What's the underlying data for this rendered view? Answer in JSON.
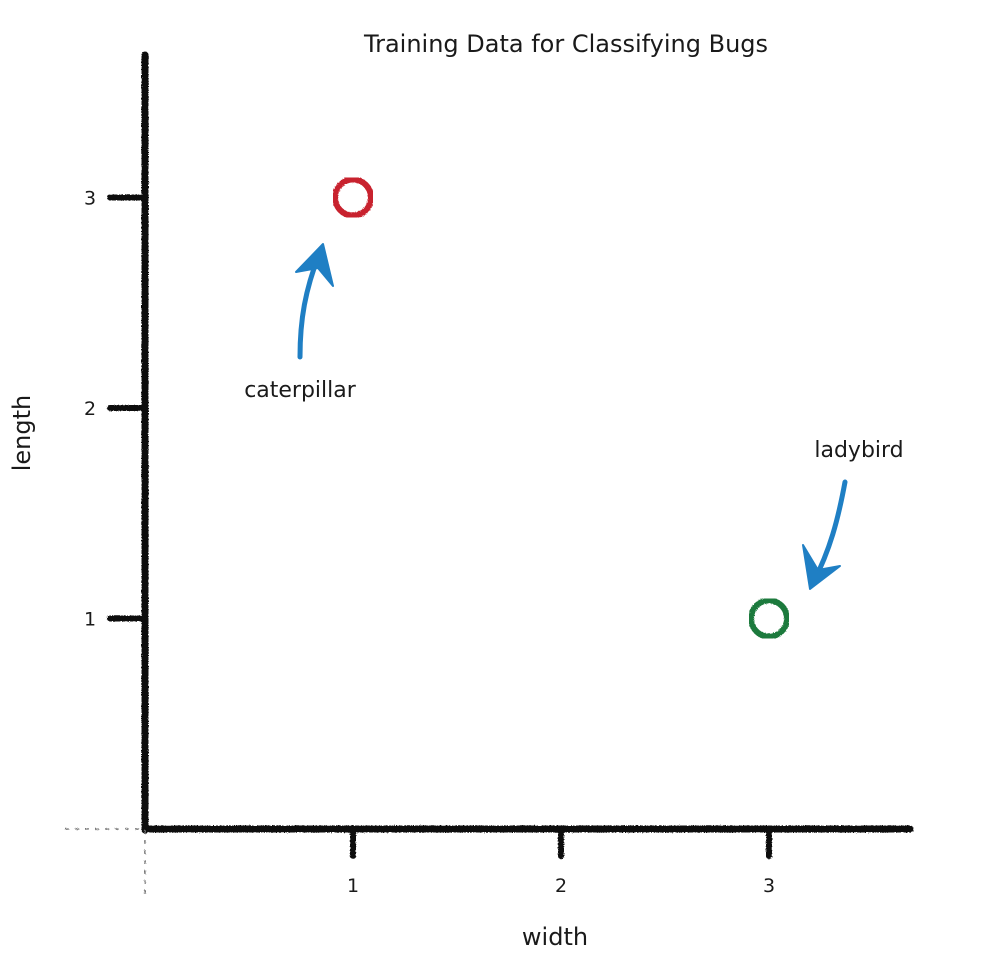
{
  "chart_data": {
    "type": "scatter",
    "title": "Training Data for Classifying Bugs",
    "xlabel": "width",
    "ylabel": "length",
    "xlim": [
      0,
      3.6
    ],
    "ylim": [
      0,
      3.6
    ],
    "x_ticks": [
      "1",
      "2",
      "3"
    ],
    "y_ticks": [
      "1",
      "2",
      "3"
    ],
    "grid": false,
    "points": [
      {
        "label": "caterpillar",
        "x": 1,
        "y": 3,
        "color": "#c8242f"
      },
      {
        "label": "ladybird",
        "x": 3,
        "y": 1,
        "color": "#1e7a3c"
      }
    ],
    "annotation_arrow_color": "#1f7fc4",
    "axis_color": "#111111"
  }
}
